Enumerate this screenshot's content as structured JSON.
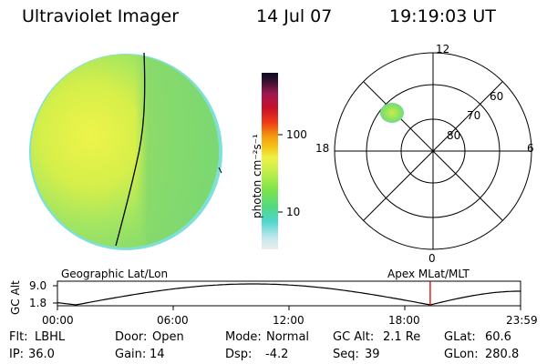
{
  "header": {
    "title": "Ultraviolet Imager",
    "date": "14 Jul 07",
    "time": "19:19:03 UT"
  },
  "colorbar": {
    "unit_label": "photon cm⁻²s⁻¹",
    "ticks": [
      "100",
      "10"
    ]
  },
  "polar_plot": {
    "mlt_labels": {
      "top": "12",
      "left": "18",
      "right": "6",
      "bottom": "0"
    },
    "lat_labels": [
      "60",
      "70",
      "80"
    ]
  },
  "orbit_panel": {
    "left_title": "Geographic Lat/Lon",
    "right_title": "Apex  MLat/MLT",
    "y_axis_label": "GC Alt",
    "y_ticks": [
      "9.0",
      "1.8"
    ],
    "x_ticks": [
      "00:00",
      "06:00",
      "12:00",
      "18:00",
      "23:59"
    ],
    "current_time_fraction": 0.8049,
    "marker_color": "#d40000"
  },
  "footer": {
    "row1": {
      "flt_label": "Flt:",
      "flt_value": "LBHL",
      "door_label": "Door:",
      "door_value": "Open",
      "mode_label": "Mode:",
      "mode_value": "Normal",
      "gcalt_label": "GC Alt:",
      "gcalt_value": "2.1 Re",
      "glat_label": "GLat:",
      "glat_value": "60.6"
    },
    "row2": {
      "ip_label": "IP:",
      "ip_value": "36.0",
      "gain_label": "Gain:",
      "gain_value": "14",
      "dsp_label": "Dsp:",
      "dsp_value": "-4.2",
      "seq_label": "Seq:",
      "seq_value": "39",
      "glon_label": "GLon:",
      "glon_value": "280.8"
    }
  }
}
